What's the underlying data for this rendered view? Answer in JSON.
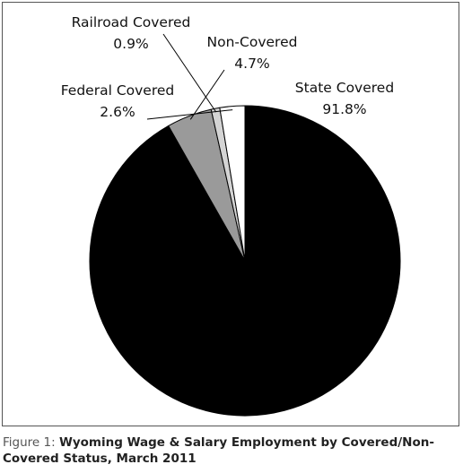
{
  "chart_data": {
    "type": "pie",
    "categories": [
      "State Covered",
      "Non-Covered",
      "Railroad Covered",
      "Federal Covered"
    ],
    "values": [
      91.8,
      4.7,
      0.9,
      2.6
    ],
    "value_labels": [
      "91.8%",
      "4.7%",
      "0.9%",
      "2.6%"
    ],
    "colors": [
      "#000000",
      "#9a9a9a",
      "#d4d4d4",
      "#ffffff"
    ]
  },
  "caption": {
    "lead": "Figure 1:",
    "text": "Wyoming Wage & Salary Employment by Covered/Non-Covered Status, March 2011"
  }
}
